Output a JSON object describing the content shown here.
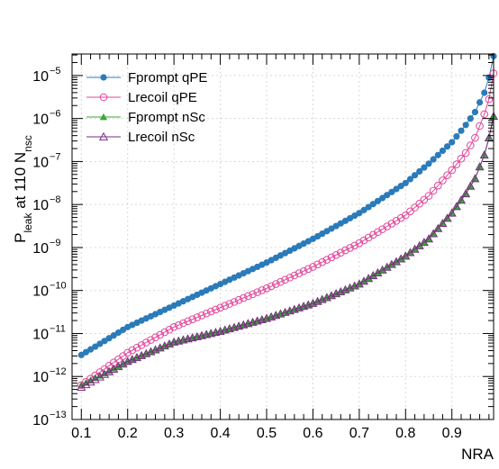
{
  "chart_data": {
    "type": "scatter",
    "xlabel": "NRA",
    "ylabel": "P",
    "ylabel_sub": "leak",
    "ylabel_mid": " at 110 N",
    "ylabel_sub2": "nsc",
    "log_y": true,
    "xlim": [
      0.08,
      0.99
    ],
    "ylim_exp": [
      -13,
      -4.5
    ],
    "grid": true,
    "legend_position": "top-left",
    "x_ticks": [
      "0.1",
      "0.2",
      "0.3",
      "0.4",
      "0.5",
      "0.6",
      "0.7",
      "0.8",
      "0.9"
    ],
    "y_ticks": [
      {
        "mant": "10",
        "exp": "−13"
      },
      {
        "mant": "10",
        "exp": "−12"
      },
      {
        "mant": "10",
        "exp": "−11"
      },
      {
        "mant": "10",
        "exp": "−10"
      },
      {
        "mant": "10",
        "exp": "−9"
      },
      {
        "mant": "10",
        "exp": "−8"
      },
      {
        "mant": "10",
        "exp": "−7"
      },
      {
        "mant": "10",
        "exp": "−6"
      },
      {
        "mant": "10",
        "exp": "−5"
      }
    ],
    "series": [
      {
        "name": "Fprompt qPE",
        "color": "#2b7bb9",
        "marker": "filled-circle",
        "x": [
          0.1,
          0.2,
          0.3,
          0.4,
          0.5,
          0.6,
          0.7,
          0.8,
          0.85,
          0.9,
          0.93,
          0.95,
          0.97,
          0.98,
          0.99
        ],
        "logy": [
          -11.5,
          -10.85,
          -10.35,
          -9.85,
          -9.35,
          -8.8,
          -8.2,
          -7.5,
          -7.05,
          -6.55,
          -6.15,
          -5.85,
          -5.4,
          -5.05,
          -4.55
        ]
      },
      {
        "name": "Lrecoil qPE",
        "color": "#e0469a",
        "marker": "open-circle",
        "x": [
          0.1,
          0.2,
          0.3,
          0.4,
          0.5,
          0.6,
          0.7,
          0.8,
          0.85,
          0.9,
          0.93,
          0.95,
          0.97,
          0.98,
          0.99
        ],
        "logy": [
          -12.2,
          -11.45,
          -10.85,
          -10.4,
          -9.95,
          -9.45,
          -8.9,
          -8.25,
          -7.8,
          -7.2,
          -6.8,
          -6.45,
          -5.9,
          -5.55,
          -4.95
        ]
      },
      {
        "name": "Fprompt nSc",
        "color": "#3aaa35",
        "marker": "filled-triangle",
        "x": [
          0.1,
          0.2,
          0.3,
          0.4,
          0.5,
          0.6,
          0.7,
          0.8,
          0.85,
          0.9,
          0.93,
          0.95,
          0.97,
          0.98,
          0.99
        ],
        "logy": [
          -12.2,
          -11.65,
          -11.2,
          -10.95,
          -10.65,
          -10.3,
          -9.85,
          -9.2,
          -8.8,
          -8.2,
          -7.75,
          -7.4,
          -6.85,
          -6.45,
          -5.95
        ]
      },
      {
        "name": "Lrecoil nSc",
        "color": "#7b2d82",
        "marker": "open-triangle",
        "x": [
          0.1,
          0.2,
          0.3,
          0.4,
          0.5,
          0.6,
          0.7,
          0.8,
          0.85,
          0.9,
          0.93,
          0.95,
          0.97,
          0.98,
          0.99
        ],
        "logy": [
          -12.25,
          -11.65,
          -11.2,
          -10.95,
          -10.65,
          -10.3,
          -9.85,
          -9.2,
          -8.8,
          -8.2,
          -7.75,
          -7.4,
          -6.85,
          -6.45,
          -5.95
        ]
      }
    ]
  }
}
